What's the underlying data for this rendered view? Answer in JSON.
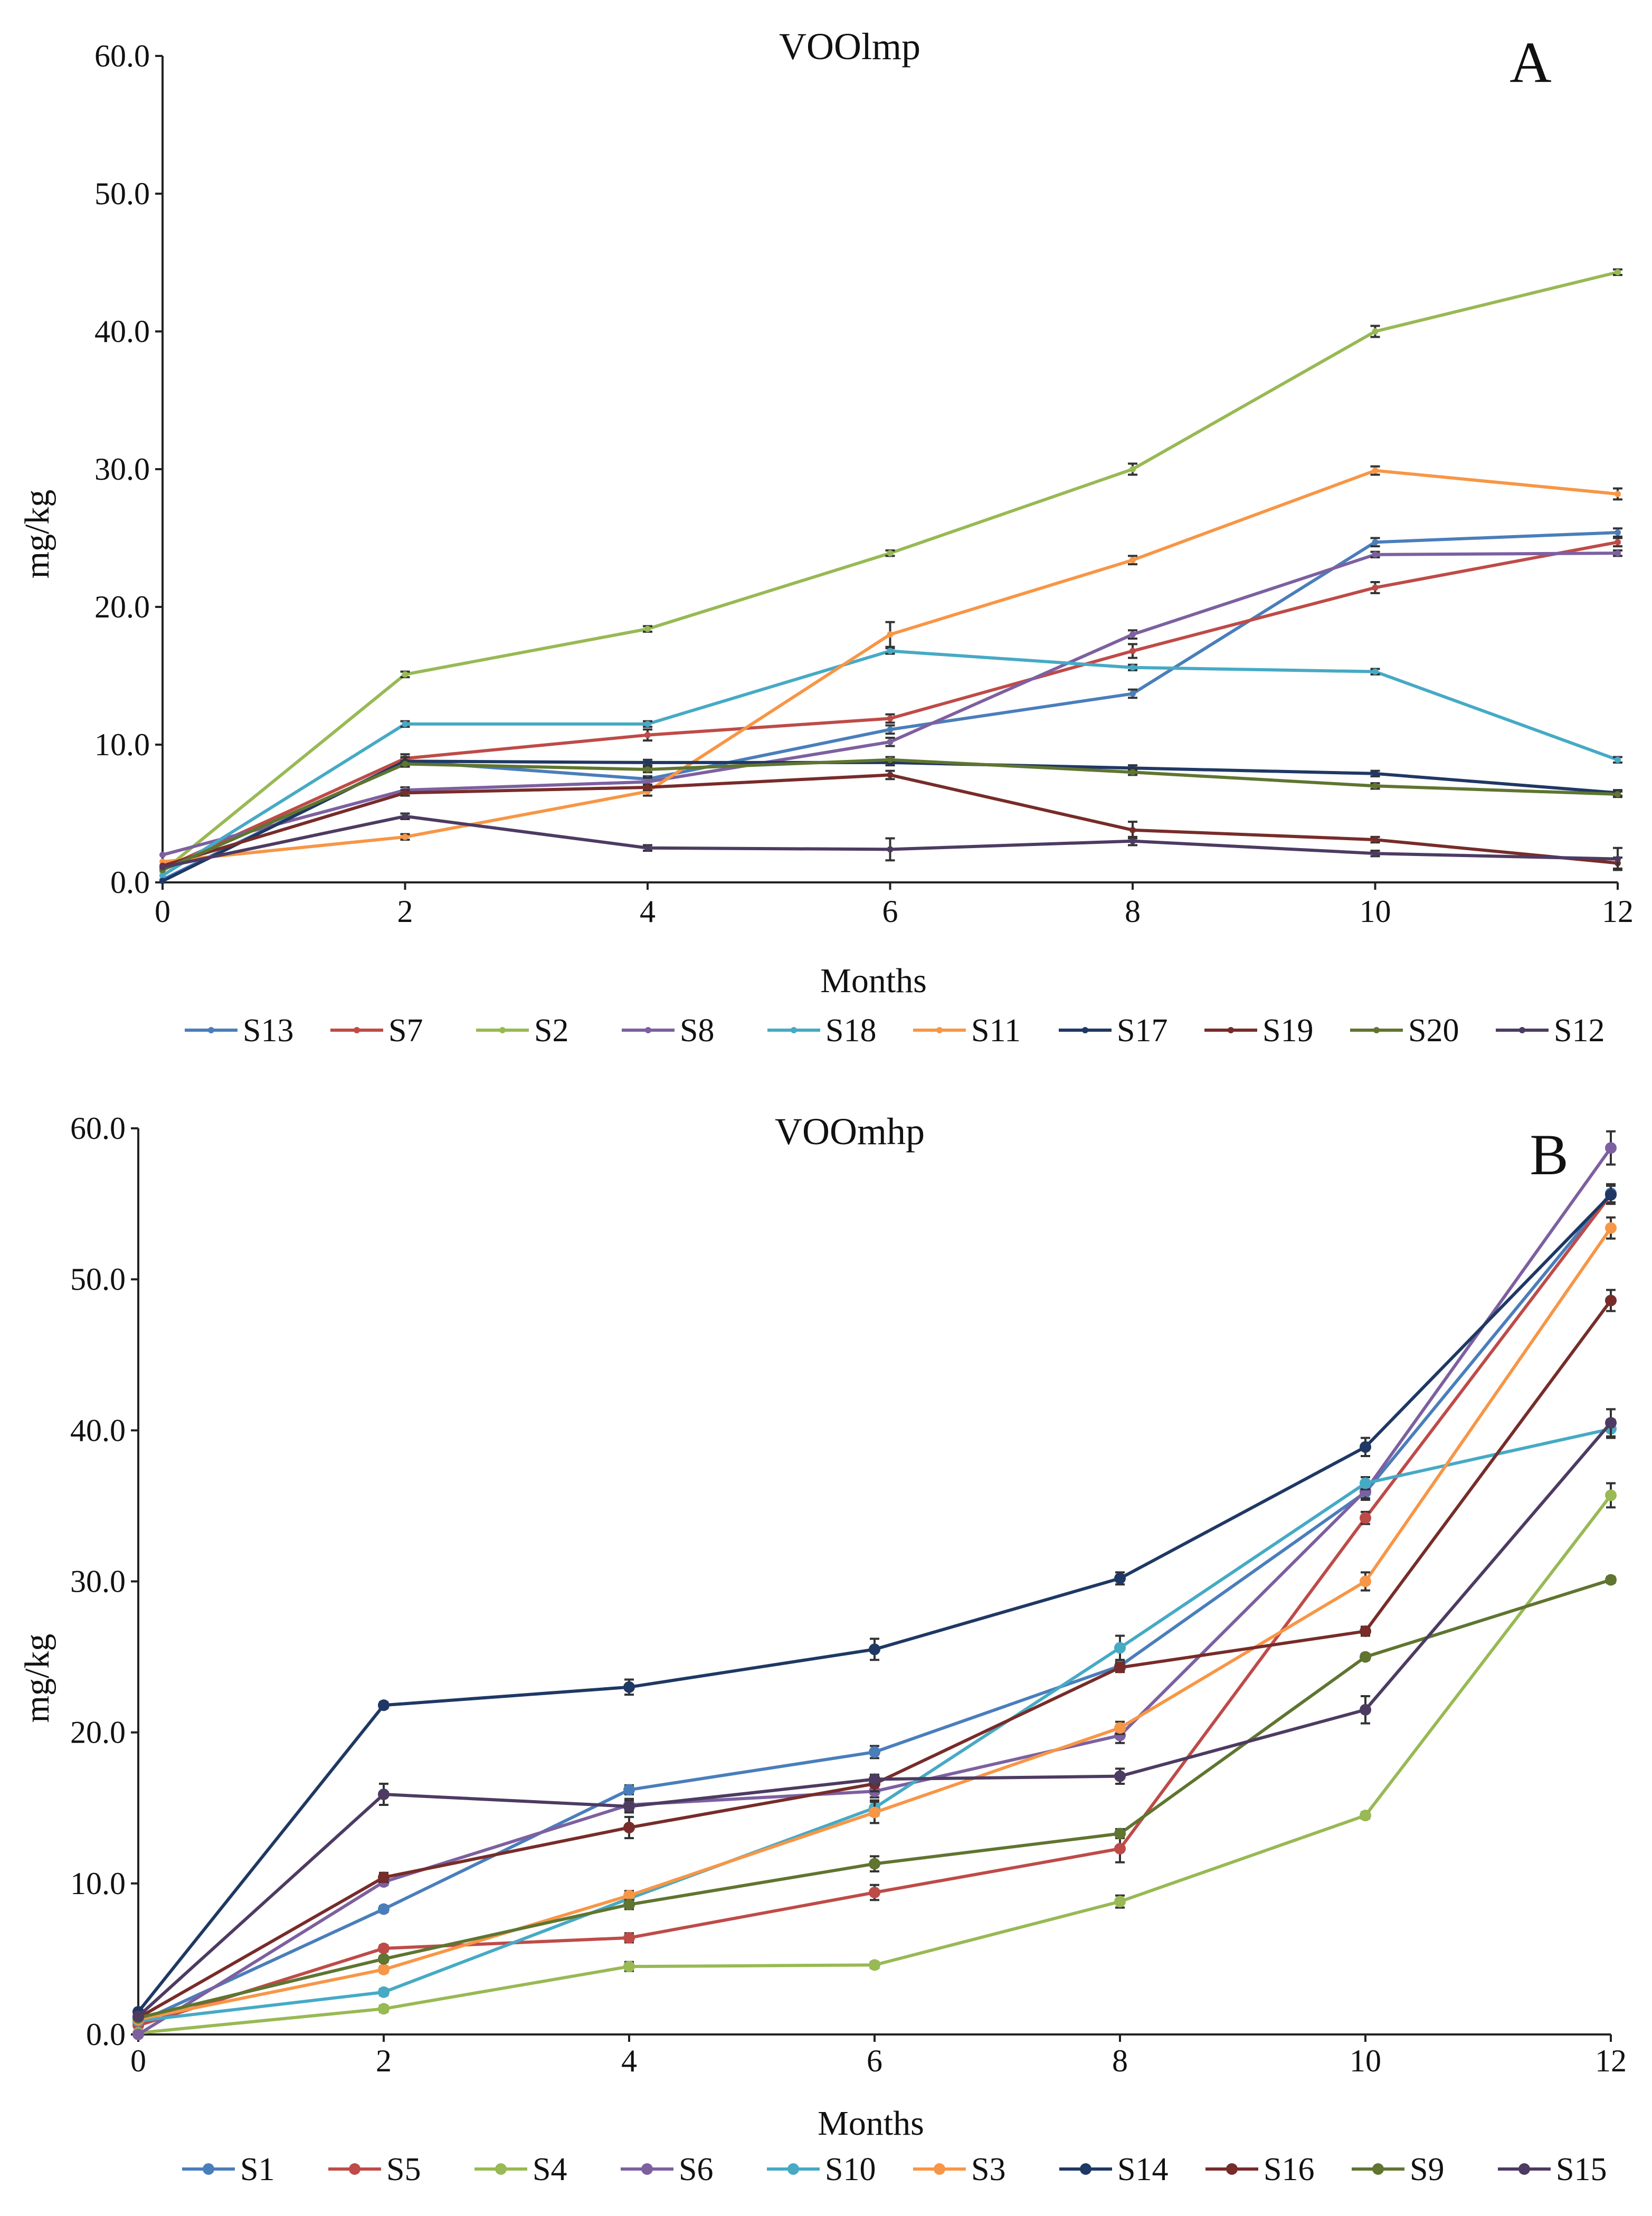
{
  "chart_data": [
    {
      "type": "line",
      "panel_label": "A",
      "title": "VOOlmp",
      "xlabel": "Months",
      "ylabel": "mg/kg",
      "x": [
        0,
        2,
        4,
        6,
        8,
        10,
        12
      ],
      "xticks": [
        "0",
        "2",
        "4",
        "6",
        "8",
        "10",
        "12"
      ],
      "yticks": [
        "0.0",
        "10.0",
        "20.0",
        "30.0",
        "40.0",
        "50.0",
        "60.0"
      ],
      "xlim": [
        0,
        12
      ],
      "ylim": [
        0,
        60
      ],
      "grid": false,
      "legend_position": "bottom",
      "marker_size": "small",
      "series": [
        {
          "name": "S13",
          "color": "#4a7ebb",
          "values": [
            0.2,
            8.8,
            7.5,
            11.1,
            13.7,
            24.7,
            25.4
          ],
          "errors": [
            0.1,
            0.2,
            0.2,
            0.3,
            0.3,
            0.3,
            0.3
          ]
        },
        {
          "name": "S7",
          "color": "#be4b48",
          "values": [
            1.0,
            9.0,
            10.7,
            11.9,
            16.8,
            21.4,
            24.7
          ],
          "errors": [
            0.1,
            0.3,
            0.4,
            0.3,
            0.5,
            0.4,
            0.3
          ]
        },
        {
          "name": "S2",
          "color": "#98b954",
          "values": [
            0.8,
            15.1,
            18.4,
            23.9,
            30.0,
            40.0,
            44.3
          ],
          "errors": [
            0.1,
            0.2,
            0.2,
            0.2,
            0.4,
            0.4,
            0.2
          ]
        },
        {
          "name": "S8",
          "color": "#7d60a0",
          "values": [
            2.0,
            6.7,
            7.3,
            10.2,
            18.0,
            23.8,
            23.9
          ],
          "errors": [
            0.1,
            0.2,
            0.3,
            0.3,
            0.3,
            0.2,
            0.2
          ]
        },
        {
          "name": "S18",
          "color": "#46aac5",
          "values": [
            0.5,
            11.5,
            11.5,
            16.8,
            15.6,
            15.3,
            8.9
          ],
          "errors": [
            0.1,
            0.2,
            0.2,
            0.2,
            0.2,
            0.2,
            0.2
          ]
        },
        {
          "name": "S11",
          "color": "#f79646",
          "values": [
            1.5,
            3.3,
            6.6,
            18.0,
            23.4,
            29.9,
            28.2
          ],
          "errors": [
            0.1,
            0.2,
            0.3,
            0.9,
            0.3,
            0.3,
            0.4
          ]
        },
        {
          "name": "S17",
          "color": "#1f3864",
          "values": [
            0.1,
            8.8,
            8.7,
            8.7,
            8.3,
            7.9,
            6.5
          ],
          "errors": [
            0.1,
            0.3,
            0.2,
            0.2,
            0.2,
            0.2,
            0.2
          ]
        },
        {
          "name": "S19",
          "color": "#772c2a",
          "values": [
            1.2,
            6.5,
            6.9,
            7.8,
            3.8,
            3.1,
            1.4
          ],
          "errors": [
            0.1,
            0.2,
            0.2,
            0.3,
            0.6,
            0.2,
            0.4
          ]
        },
        {
          "name": "S20",
          "color": "#5f7530",
          "values": [
            0.9,
            8.6,
            8.2,
            8.9,
            8.0,
            7.0,
            6.4
          ],
          "errors": [
            0.1,
            0.2,
            0.2,
            0.2,
            0.2,
            0.2,
            0.2
          ]
        },
        {
          "name": "S12",
          "color": "#4d3b62",
          "values": [
            1.1,
            4.8,
            2.5,
            2.4,
            3.0,
            2.1,
            1.7
          ],
          "errors": [
            0.1,
            0.2,
            0.2,
            0.8,
            0.3,
            0.2,
            0.8
          ]
        }
      ]
    },
    {
      "type": "line",
      "panel_label": "B",
      "title": "VOOmhp",
      "xlabel": "Months",
      "ylabel": "mg/kg",
      "x": [
        0,
        2,
        4,
        6,
        8,
        10,
        12
      ],
      "xticks": [
        "0",
        "2",
        "4",
        "6",
        "8",
        "10",
        "12"
      ],
      "yticks": [
        "0.0",
        "10.0",
        "20.0",
        "30.0",
        "40.0",
        "50.0",
        "60.0"
      ],
      "xlim": [
        0,
        12
      ],
      "ylim": [
        0,
        60
      ],
      "grid": false,
      "legend_position": "bottom",
      "marker_size": "large",
      "series": [
        {
          "name": "S1",
          "color": "#4a7ebb",
          "values": [
            0.8,
            8.3,
            16.2,
            18.7,
            24.4,
            35.9,
            55.7
          ],
          "errors": [
            0.1,
            0.2,
            0.3,
            0.4,
            0.3,
            0.5,
            0.6
          ]
        },
        {
          "name": "S5",
          "color": "#be4b48",
          "values": [
            0.6,
            5.7,
            6.4,
            9.4,
            12.3,
            34.2,
            55.6
          ],
          "errors": [
            0.1,
            0.2,
            0.3,
            0.5,
            0.9,
            0.4,
            0.6
          ]
        },
        {
          "name": "S4",
          "color": "#98b954",
          "values": [
            0.1,
            1.7,
            4.5,
            4.6,
            8.8,
            14.5,
            35.7
          ],
          "errors": [
            0.1,
            0.2,
            0.3,
            0.2,
            0.4,
            0.2,
            0.8
          ]
        },
        {
          "name": "S6",
          "color": "#7d60a0",
          "values": [
            0.0,
            10.1,
            15.2,
            16.1,
            19.8,
            36.0,
            58.7
          ],
          "errors": [
            0.1,
            0.2,
            0.4,
            0.4,
            0.5,
            0.5,
            1.1
          ]
        },
        {
          "name": "S10",
          "color": "#46aac5",
          "values": [
            0.9,
            2.8,
            9.0,
            15.0,
            25.6,
            36.5,
            40.1
          ],
          "errors": [
            0.1,
            0.2,
            0.3,
            0.5,
            0.8,
            0.4,
            0.6
          ]
        },
        {
          "name": "S3",
          "color": "#f79646",
          "values": [
            1.0,
            4.3,
            9.2,
            14.7,
            20.3,
            30.0,
            53.4
          ],
          "errors": [
            0.1,
            0.2,
            0.3,
            0.7,
            0.4,
            0.6,
            0.7
          ]
        },
        {
          "name": "S14",
          "color": "#1f3864",
          "values": [
            1.5,
            21.8,
            23.0,
            25.5,
            30.2,
            38.9,
            55.6
          ],
          "errors": [
            0.1,
            0.2,
            0.5,
            0.7,
            0.4,
            0.6,
            0.6
          ]
        },
        {
          "name": "S16",
          "color": "#772c2a",
          "values": [
            1.1,
            10.4,
            13.7,
            16.6,
            24.3,
            26.7,
            48.6
          ],
          "errors": [
            0.1,
            0.3,
            0.7,
            0.5,
            0.3,
            0.3,
            0.7
          ]
        },
        {
          "name": "S9",
          "color": "#5f7530",
          "values": [
            1.1,
            5.0,
            8.6,
            11.3,
            13.3,
            25.0,
            30.1
          ],
          "errors": [
            0.1,
            0.2,
            0.3,
            0.5,
            0.3,
            0.2,
            0.2
          ]
        },
        {
          "name": "S15",
          "color": "#4d3b62",
          "values": [
            1.2,
            15.9,
            15.1,
            16.9,
            17.1,
            21.5,
            40.5
          ],
          "errors": [
            0.1,
            0.7,
            0.4,
            0.3,
            0.5,
            0.9,
            0.9
          ]
        }
      ]
    }
  ]
}
